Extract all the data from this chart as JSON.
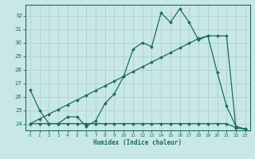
{
  "xlabel": "Humidex (Indice chaleur)",
  "bg_color": "#c8e8e8",
  "line_color": "#1a6b5a",
  "grid_color": "#afd0cc",
  "x": [
    0,
    1,
    2,
    3,
    4,
    5,
    6,
    7,
    8,
    9,
    10,
    11,
    12,
    13,
    14,
    15,
    16,
    17,
    18,
    19,
    20,
    21,
    22,
    23
  ],
  "y_main": [
    26.5,
    25.0,
    24.0,
    24.0,
    24.5,
    24.5,
    23.8,
    24.2,
    25.5,
    26.2,
    27.5,
    29.5,
    30.0,
    29.7,
    32.2,
    31.5,
    32.5,
    31.5,
    30.2,
    30.5,
    27.8,
    25.3,
    23.8,
    23.6
  ],
  "y_flat": [
    24.0,
    24.0,
    24.0,
    24.0,
    24.0,
    24.0,
    24.0,
    24.0,
    24.0,
    24.0,
    24.0,
    24.0,
    24.0,
    24.0,
    24.0,
    24.0,
    24.0,
    24.0,
    24.0,
    24.0,
    24.0,
    24.0,
    23.7,
    23.6
  ],
  "y_rising": [
    24.0,
    24.35,
    24.7,
    25.05,
    25.4,
    25.75,
    26.1,
    26.45,
    26.8,
    27.15,
    27.5,
    27.85,
    28.2,
    28.55,
    28.9,
    29.25,
    29.6,
    29.95,
    30.3,
    30.5,
    30.5,
    30.5,
    23.7,
    23.6
  ],
  "ylim": [
    23.5,
    32.8
  ],
  "yticks": [
    24,
    25,
    26,
    27,
    28,
    29,
    30,
    31,
    32
  ],
  "xticks": [
    0,
    1,
    2,
    3,
    4,
    5,
    6,
    7,
    8,
    9,
    10,
    11,
    12,
    13,
    14,
    15,
    16,
    17,
    18,
    19,
    20,
    21,
    22,
    23
  ],
  "markersize": 2.0,
  "linewidth": 0.9
}
